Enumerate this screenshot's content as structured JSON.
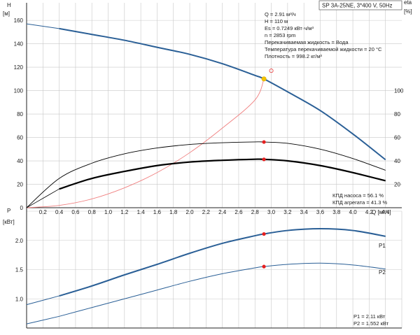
{
  "header": {
    "title": "SP 3A-25NE, 3*400 V, 50Hz"
  },
  "info": {
    "lines": [
      "Q = 2.91 м³/ч",
      "H = 110 м",
      "Es = 0.7249 кВт·ч/м³",
      "n = 2853 rpm",
      "Перекачиваемая жидкость = Вода",
      "Температура перекачиваемой жидкости = 20 °C",
      "Плотность = 998.2 кг/м³"
    ],
    "efficiency": [
      "КПД насоса = 56.1 %",
      "КПД агрегата = 41.3 %"
    ],
    "power": [
      "P1 = 2.11 кВт",
      "P2 = 1.552 кВт"
    ]
  },
  "colors": {
    "pump_curve": "#2a5f96",
    "power_curve": "#2a5f96",
    "system_curve": "#f08080",
    "efficiency": "#000000",
    "duty_point": "#e52020",
    "operating_point": "#f5c400"
  },
  "chart_data": [
    {
      "type": "line",
      "x_axis": {
        "label": "Q [м³/ч]",
        "range": [
          0,
          4.6
        ],
        "ticks": [
          "0.2",
          "0.4",
          "0.6",
          "0.8",
          "1.0",
          "1.2",
          "1.4",
          "1.6",
          "1.8",
          "2.0",
          "2.2",
          "2.4",
          "2.6",
          "2.8",
          "3.0",
          "3.2",
          "3.4",
          "3.6",
          "3.8",
          "4.0",
          "4.2",
          "4.4"
        ]
      },
      "y_left": {
        "label_top": "H",
        "label_unit": "[м]",
        "range": [
          0,
          175
        ],
        "ticks": [
          "0",
          "20",
          "40",
          "60",
          "80",
          "100",
          "120",
          "140",
          "160"
        ]
      },
      "y_right": {
        "label_top": "eta",
        "label_unit": "[%]",
        "range": [
          0,
          175
        ],
        "ticks": [
          "20",
          "40",
          "60",
          "80",
          "100"
        ]
      },
      "series": [
        {
          "role": "pump-head",
          "x": [
            0,
            0.4,
            0.8,
            1.2,
            1.6,
            2.0,
            2.4,
            2.8,
            2.91,
            3.2,
            3.6,
            4.0,
            4.4
          ],
          "y": [
            157,
            153,
            148,
            143,
            137,
            131,
            123,
            113,
            110,
            99,
            83,
            63,
            41
          ]
        },
        {
          "role": "system-curve",
          "x": [
            0,
            0.4,
            0.8,
            1.2,
            1.6,
            2.0,
            2.4,
            2.8,
            2.91
          ],
          "y": [
            0,
            2,
            7.5,
            17,
            30,
            47,
            68,
            92,
            110
          ]
        },
        {
          "role": "pump-efficiency",
          "x": [
            0,
            0.4,
            0.8,
            1.2,
            1.6,
            2.0,
            2.4,
            2.8,
            2.91,
            3.2,
            3.6,
            4.0,
            4.4
          ],
          "y": [
            0,
            25,
            38,
            46,
            51,
            54,
            55.5,
            56.2,
            56.1,
            55,
            50,
            42,
            32
          ]
        },
        {
          "role": "unit-efficiency",
          "x": [
            0.4,
            0.8,
            1.2,
            1.6,
            2.0,
            2.4,
            2.8,
            2.91,
            3.2,
            3.6,
            4.0,
            4.4
          ],
          "y": [
            16,
            25,
            31,
            36,
            39,
            40.5,
            41.4,
            41.3,
            40,
            36,
            30,
            23
          ]
        }
      ],
      "duty_points": [
        {
          "x": 2.91,
          "y": 110,
          "role": "operating-point"
        },
        {
          "x": 3.0,
          "y": 117,
          "role": "operating-point-outline"
        },
        {
          "x": 2.91,
          "y": 56.1,
          "role": "pump-efficiency-point"
        },
        {
          "x": 2.91,
          "y": 41.3,
          "role": "unit-efficiency-point"
        }
      ]
    },
    {
      "type": "line",
      "x_axis": {
        "range": [
          0,
          4.6
        ]
      },
      "y_left": {
        "label_top": "P",
        "label_unit": "[кВт]",
        "range": [
          0.5,
          2.5
        ],
        "ticks": [
          "1.0",
          "1.5",
          "2.0"
        ]
      },
      "series": [
        {
          "name": "P1",
          "x": [
            0,
            0.4,
            0.8,
            1.2,
            1.6,
            2.0,
            2.4,
            2.8,
            2.91,
            3.2,
            3.6,
            4.0,
            4.4
          ],
          "y": [
            0.9,
            1.05,
            1.22,
            1.41,
            1.59,
            1.78,
            1.95,
            2.08,
            2.11,
            2.17,
            2.2,
            2.17,
            2.07
          ]
        },
        {
          "name": "P2",
          "x": [
            0,
            0.4,
            0.8,
            1.2,
            1.6,
            2.0,
            2.4,
            2.8,
            2.91,
            3.2,
            3.6,
            4.0,
            4.4
          ],
          "y": [
            0.57,
            0.7,
            0.85,
            1.0,
            1.15,
            1.3,
            1.43,
            1.53,
            1.552,
            1.59,
            1.61,
            1.58,
            1.51
          ]
        }
      ],
      "duty_points": [
        {
          "x": 2.91,
          "y": 2.11,
          "role": "p1-point"
        },
        {
          "x": 2.91,
          "y": 1.552,
          "role": "p2-point"
        }
      ]
    }
  ]
}
